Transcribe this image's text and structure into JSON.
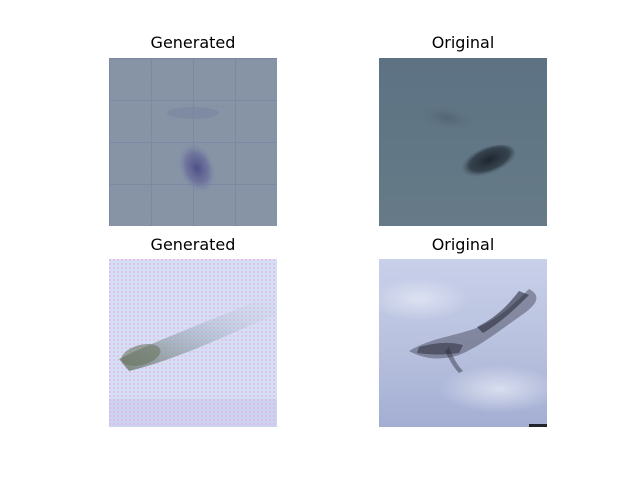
{
  "figure": {
    "panels": [
      {
        "title": "Generated"
      },
      {
        "title": "Original"
      },
      {
        "title": "Generated"
      },
      {
        "title": "Original"
      }
    ]
  }
}
